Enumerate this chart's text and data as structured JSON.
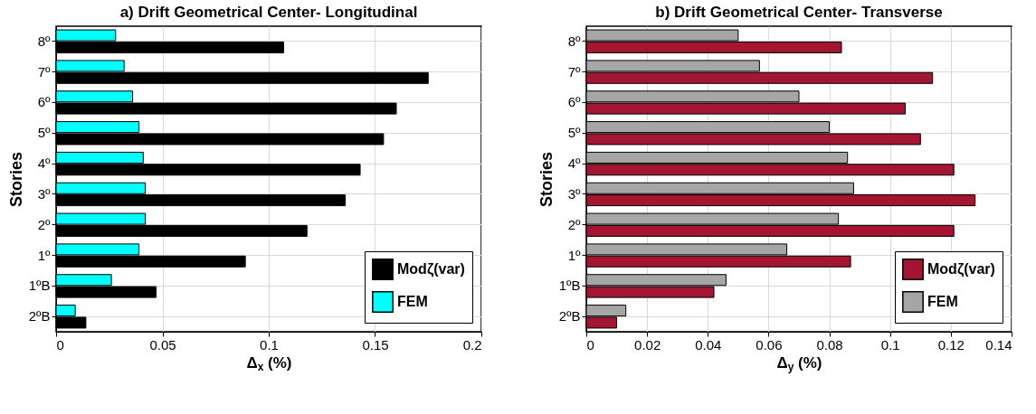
{
  "chart_data": [
    {
      "type": "bar",
      "orientation": "horizontal",
      "title": "a) Drift Geometrical Center- Longitudinal",
      "xlabel": "Δ$_{x}$ (%)",
      "ylabel": "Stories",
      "categories": [
        "8º",
        "7º",
        "6º",
        "5º",
        "4º",
        "3º",
        "2º",
        "1º",
        "1ºB",
        "2ºB"
      ],
      "series": [
        {
          "name": "Modζ(var)",
          "color": "#000000",
          "values": [
            0.107,
            0.175,
            0.16,
            0.154,
            0.143,
            0.136,
            0.118,
            0.089,
            0.047,
            0.014
          ]
        },
        {
          "name": "FEM",
          "color": "#00ffff",
          "values": [
            0.028,
            0.032,
            0.036,
            0.039,
            0.041,
            0.042,
            0.042,
            0.039,
            0.026,
            0.009
          ]
        }
      ],
      "xlim": [
        0,
        0.2
      ],
      "xticks": [
        0,
        0.05,
        0.1,
        0.15,
        0.2
      ],
      "grid": true,
      "legend": "bottom right"
    },
    {
      "type": "bar",
      "orientation": "horizontal",
      "title": "b) Drift Geometrical Center- Transverse",
      "xlabel": "Δ$_{y}$ (%)",
      "ylabel": "Stories",
      "categories": [
        "8º",
        "7º",
        "6º",
        "5º",
        "4º",
        "3º",
        "2º",
        "1º",
        "1ºB",
        "2ºB"
      ],
      "series": [
        {
          "name": "Modζ(var)",
          "color": "#a31530",
          "values": [
            0.084,
            0.114,
            0.105,
            0.11,
            0.121,
            0.128,
            0.121,
            0.087,
            0.042,
            0.01
          ]
        },
        {
          "name": "FEM",
          "color": "#a6a6a6",
          "values": [
            0.05,
            0.057,
            0.07,
            0.08,
            0.086,
            0.088,
            0.083,
            0.066,
            0.046,
            0.013
          ]
        }
      ],
      "xlim": [
        0,
        0.14
      ],
      "xticks": [
        0,
        0.02,
        0.04,
        0.06,
        0.08,
        0.1,
        0.12,
        0.14
      ],
      "grid": true,
      "legend": "bottom right"
    }
  ]
}
